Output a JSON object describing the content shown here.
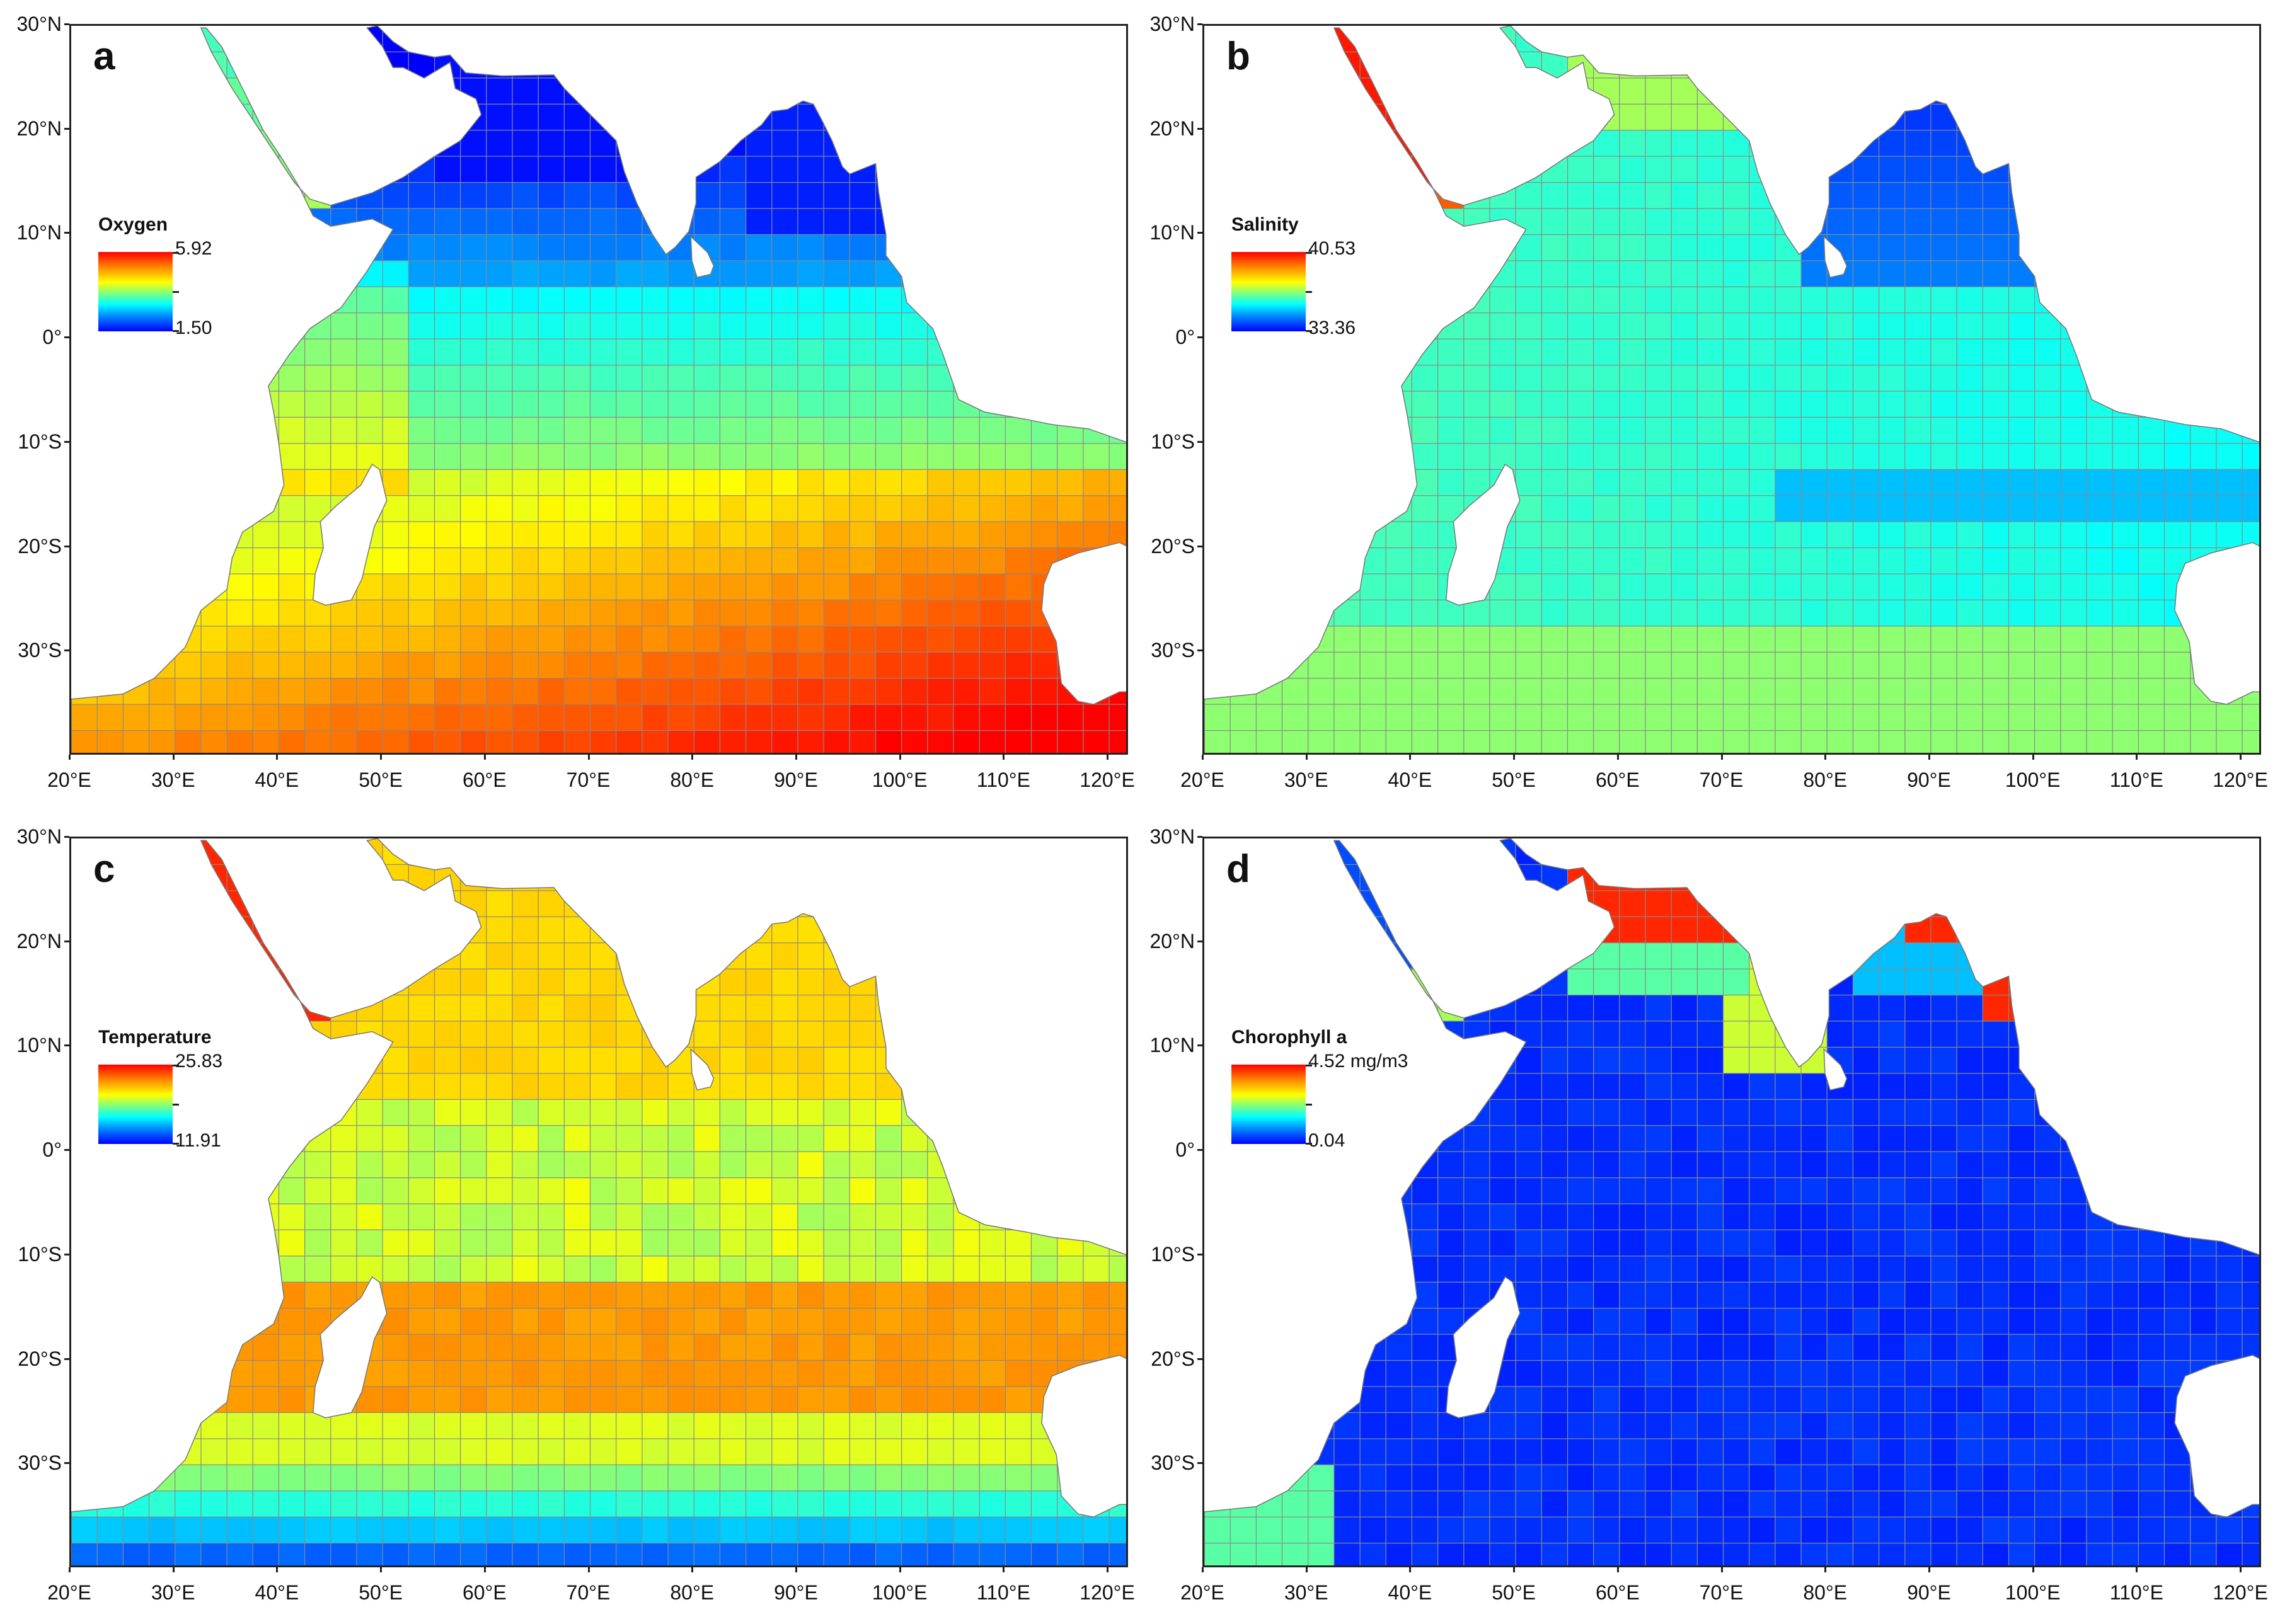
{
  "y_ticks": [
    "30°N",
    "20°N",
    "10°N",
    "0°",
    "10°S",
    "20°S",
    "30°S"
  ],
  "x_ticks": [
    "20°E",
    "30°E",
    "40°E",
    "50°E",
    "60°E",
    "70°E",
    "80°E",
    "90°E",
    "100°E",
    "110°E",
    "120°E"
  ],
  "panels": [
    {
      "letter": "a",
      "legend_title": "Oxygen",
      "legend_max": "5.92",
      "legend_min": "1.50"
    },
    {
      "letter": "b",
      "legend_title": "Salinity",
      "legend_max": "40.53",
      "legend_min": "33.36"
    },
    {
      "letter": "c",
      "legend_title": "Temperature",
      "legend_max": "25.83",
      "legend_min": "11.91"
    },
    {
      "letter": "d",
      "legend_title": "Chorophyll a",
      "legend_max": "4.52 mg/m3",
      "legend_min": "0.04"
    }
  ],
  "colors": {
    "scale": [
      "#0000ff",
      "#0080ff",
      "#00ffff",
      "#7fff7f",
      "#ffff00",
      "#ff7f00",
      "#ff0000"
    ],
    "grid": "#8a8a8a",
    "land": "#ffffff"
  }
}
